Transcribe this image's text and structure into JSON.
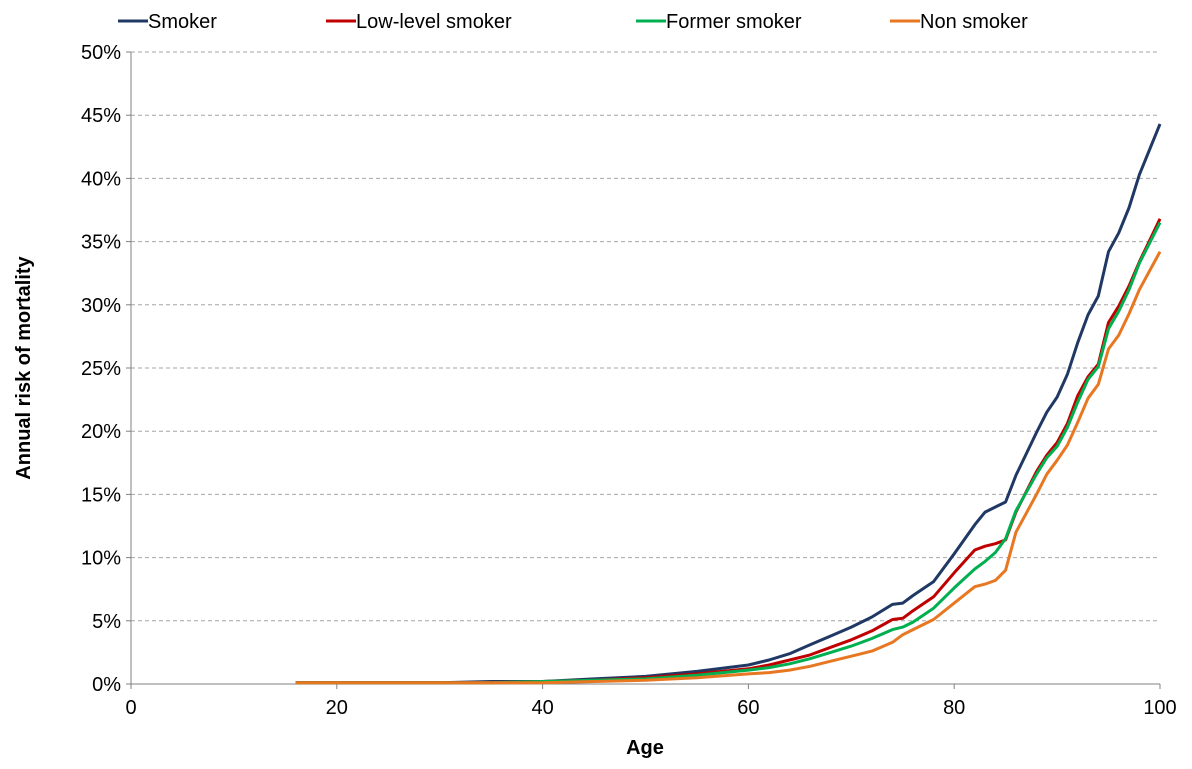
{
  "chart_data": {
    "type": "line",
    "xlabel": "Age",
    "ylabel": "Annual risk of mortality",
    "xlim": [
      0,
      100
    ],
    "ylim": [
      0,
      0.5
    ],
    "x_ticks": [
      0,
      20,
      40,
      60,
      80,
      100
    ],
    "y_ticks": [
      0,
      0.05,
      0.1,
      0.15,
      0.2,
      0.25,
      0.3,
      0.35,
      0.4,
      0.45,
      0.5
    ],
    "x_tick_labels": [
      "0",
      "20",
      "40",
      "60",
      "80",
      "100"
    ],
    "y_tick_labels": [
      "0%",
      "5%",
      "10%",
      "15%",
      "20%",
      "25%",
      "30%",
      "35%",
      "40%",
      "45%",
      "50%"
    ],
    "grid": "horizontal dashed",
    "legend_position": "top",
    "x": [
      16,
      20,
      25,
      30,
      35,
      40,
      45,
      50,
      55,
      60,
      62,
      64,
      66,
      68,
      70,
      72,
      74,
      75,
      76,
      78,
      80,
      82,
      83,
      84,
      85,
      86,
      88,
      89,
      90,
      91,
      92,
      93,
      94,
      95,
      96,
      97,
      98,
      100
    ],
    "series": [
      {
        "name": "Smoker",
        "color": "#1F3864",
        "values": [
          0.001,
          0.001,
          0.001,
          0.001,
          0.002,
          0.002,
          0.004,
          0.006,
          0.01,
          0.015,
          0.019,
          0.024,
          0.031,
          0.038,
          0.045,
          0.053,
          0.063,
          0.064,
          0.07,
          0.081,
          0.103,
          0.126,
          0.136,
          0.14,
          0.144,
          0.165,
          0.199,
          0.215,
          0.227,
          0.245,
          0.27,
          0.292,
          0.307,
          0.342,
          0.357,
          0.377,
          0.403,
          0.443
        ]
      },
      {
        "name": "Low-level smoker",
        "color": "#C00000",
        "values": [
          0.001,
          0.001,
          0.001,
          0.001,
          0.001,
          0.002,
          0.003,
          0.005,
          0.008,
          0.012,
          0.015,
          0.019,
          0.023,
          0.029,
          0.035,
          0.042,
          0.051,
          0.052,
          0.058,
          0.069,
          0.088,
          0.106,
          0.109,
          0.111,
          0.114,
          0.136,
          0.168,
          0.181,
          0.191,
          0.206,
          0.228,
          0.243,
          0.253,
          0.286,
          0.299,
          0.315,
          0.334,
          0.368
        ]
      },
      {
        "name": "Former smoker",
        "color": "#00B050",
        "values": [
          0.001,
          0.001,
          0.001,
          0.001,
          0.001,
          0.002,
          0.003,
          0.004,
          0.007,
          0.011,
          0.013,
          0.016,
          0.02,
          0.025,
          0.03,
          0.036,
          0.043,
          0.045,
          0.049,
          0.06,
          0.076,
          0.091,
          0.097,
          0.104,
          0.115,
          0.137,
          0.166,
          0.179,
          0.188,
          0.203,
          0.223,
          0.241,
          0.251,
          0.281,
          0.295,
          0.312,
          0.333,
          0.365
        ]
      },
      {
        "name": "Non smoker",
        "color": "#E87722",
        "values": [
          0.001,
          0.001,
          0.001,
          0.001,
          0.001,
          0.001,
          0.002,
          0.003,
          0.005,
          0.008,
          0.009,
          0.011,
          0.014,
          0.018,
          0.022,
          0.026,
          0.033,
          0.039,
          0.043,
          0.051,
          0.064,
          0.077,
          0.079,
          0.082,
          0.09,
          0.12,
          0.15,
          0.166,
          0.177,
          0.189,
          0.207,
          0.226,
          0.237,
          0.265,
          0.276,
          0.293,
          0.312,
          0.342
        ]
      }
    ]
  }
}
